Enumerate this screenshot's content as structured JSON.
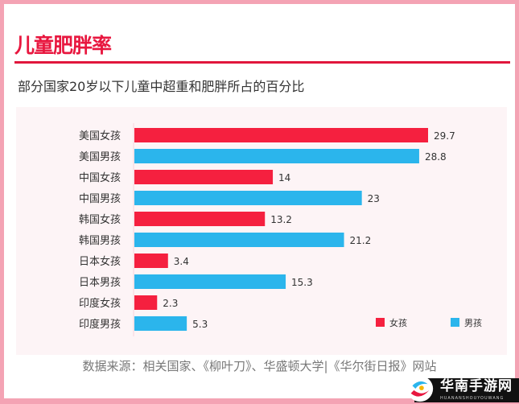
{
  "title": "儿童肥胖率",
  "subtitle": "部分国家20岁以下儿童中超重和肥胖所占的百分比",
  "source": "数据来源：相关国家、《柳叶刀》、华盛顿大学|《华尔街日报》网站",
  "watermark": {
    "text": "华南手游网",
    "sub": "HUANANSHOUYOUWANG"
  },
  "chart_data": {
    "type": "bar",
    "orientation": "horizontal",
    "categories": [
      "美国女孩",
      "美国男孩",
      "中国女孩",
      "中国男孩",
      "韩国女孩",
      "韩国男孩",
      "日本女孩",
      "日本男孩",
      "印度女孩",
      "印度男孩"
    ],
    "values": [
      29.7,
      28.8,
      14,
      23,
      13.2,
      21.2,
      3.4,
      15.3,
      2.3,
      5.3
    ],
    "labels": [
      "29.7",
      "28.8",
      "14",
      "23",
      "13.2",
      "21.2",
      "3.4",
      "15.3",
      "2.3",
      "5.3"
    ],
    "groups": [
      "girl",
      "boy",
      "girl",
      "boy",
      "girl",
      "boy",
      "girl",
      "boy",
      "girl",
      "boy"
    ],
    "legend": [
      {
        "key": "girl",
        "label": "女孩",
        "color": "#f5203f"
      },
      {
        "key": "boy",
        "label": "男孩",
        "color": "#2bb5ec"
      }
    ],
    "legend_position": "bottom-right",
    "xlim": [
      0,
      30
    ],
    "grid": false
  }
}
